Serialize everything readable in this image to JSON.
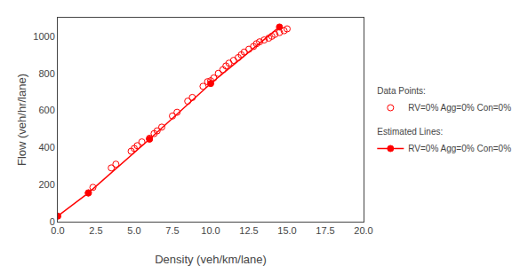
{
  "chart_data": {
    "type": "scatter",
    "xlabel": "Density (veh/km/lane)",
    "ylabel": "Flow (veh/hr/lane)",
    "xlim": [
      0.0,
      20.0
    ],
    "ylim": [
      0,
      1100
    ],
    "xticks": [
      {
        "value": 0.0,
        "label": "0.0"
      },
      2.5,
      {
        "value": 5.0,
        "label": "5.0"
      },
      7.5,
      {
        "value": 10.0,
        "label": "10.0"
      },
      12.5,
      {
        "value": 15.0,
        "label": "15.0"
      },
      17.5,
      {
        "value": 20.0,
        "label": "20.0"
      }
    ],
    "yticks": [
      0,
      200,
      400,
      600,
      800,
      1000
    ],
    "grid": false,
    "legend": "right",
    "series": [
      {
        "name": "RV=0% Agg=0% Con=0%",
        "legend_title": "Data Points:",
        "type": "scatter",
        "marker": "open circle",
        "color": "#FF0000",
        "x": [
          2.0,
          2.3,
          3.5,
          3.8,
          4.8,
          5.0,
          5.2,
          5.5,
          6.0,
          6.3,
          6.5,
          6.8,
          7.5,
          7.8,
          8.5,
          8.8,
          9.5,
          9.8,
          10.0,
          10.2,
          10.5,
          10.8,
          11.0,
          11.2,
          11.5,
          11.8,
          12.0,
          12.2,
          12.5,
          12.8,
          13.0,
          13.2,
          13.5,
          13.8,
          14.0,
          14.2,
          14.5,
          14.8,
          15.0
        ],
        "values": [
          155,
          185,
          290,
          310,
          380,
          395,
          410,
          430,
          450,
          475,
          490,
          510,
          570,
          590,
          650,
          670,
          730,
          755,
          760,
          775,
          800,
          820,
          840,
          855,
          870,
          885,
          900,
          915,
          930,
          945,
          960,
          970,
          980,
          990,
          1000,
          1010,
          1020,
          1030,
          1040
        ]
      },
      {
        "name": "RV=0% Agg=0% Con=0%",
        "legend_title": "Estimated Lines:",
        "type": "line",
        "marker": "circle",
        "line_style": "solid",
        "color": "#FF0000",
        "x": [
          0.0,
          2.0,
          6.0,
          10.0,
          14.5
        ],
        "values": [
          30,
          155,
          445,
          745,
          1050
        ]
      }
    ]
  }
}
